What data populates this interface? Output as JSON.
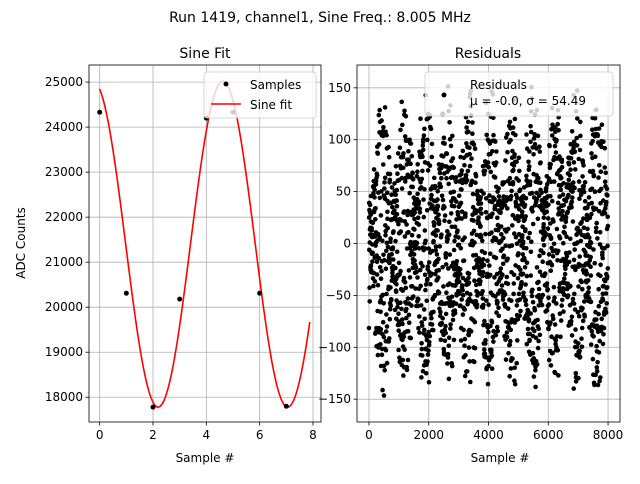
{
  "suptitle": "Run 1419, channel1, Sine Freq.: 8.005 MHz",
  "chart_data": [
    {
      "type": "line",
      "title": "Sine Fit",
      "xlabel": "Sample #",
      "ylabel": "ADC Counts",
      "xlim": [
        -0.4,
        8.3
      ],
      "ylim": [
        17450,
        25380
      ],
      "xticks": [
        0,
        2,
        4,
        6,
        8
      ],
      "yticks": [
        18000,
        19000,
        20000,
        21000,
        22000,
        23000,
        24000,
        25000
      ],
      "grid": true,
      "legend": {
        "placement": "top-right",
        "entries": [
          "Samples",
          "Sine fit"
        ]
      },
      "series": [
        {
          "name": "Samples",
          "kind": "scatter",
          "color": "#000000",
          "x": [
            0,
            1,
            2,
            3,
            4,
            5,
            6,
            7
          ],
          "y": [
            24330,
            20310,
            17780,
            20180,
            24200,
            24330,
            20310,
            17800
          ]
        },
        {
          "name": "Sine fit",
          "kind": "line",
          "color": "#ff0000",
          "model": {
            "offset": 21400,
            "amplitude": 3620,
            "period_samples": 4.86,
            "peak_at": 4.62
          },
          "x_range": [
            0,
            7.88
          ]
        }
      ]
    },
    {
      "type": "scatter",
      "title": "Residuals",
      "xlabel": "Sample #",
      "ylabel": "",
      "xlim": [
        -400,
        8400
      ],
      "ylim": [
        -172,
        172
      ],
      "xticks": [
        0,
        2000,
        4000,
        6000,
        8000
      ],
      "yticks": [
        -150,
        -100,
        -50,
        0,
        50,
        100,
        150
      ],
      "grid": true,
      "legend": {
        "placement": "top-right",
        "entries": [
          "Residuals",
          "μ = -0.0, σ = 54.49"
        ]
      },
      "series": [
        {
          "name": "Residuals",
          "color": "#000000",
          "count": 8000,
          "mean": -0.0,
          "std": 54.49,
          "envelope": {
            "base": 40,
            "amplitude": 115,
            "beat_period": 1440,
            "peak_at": 450
          }
        }
      ]
    }
  ]
}
